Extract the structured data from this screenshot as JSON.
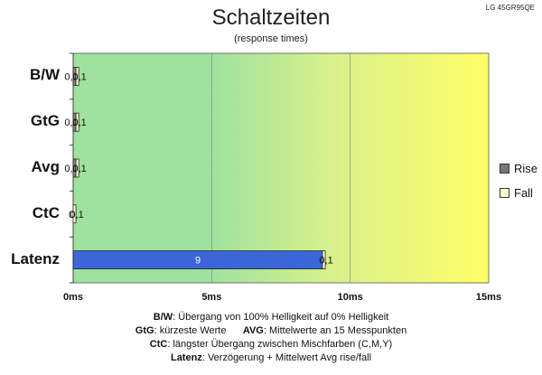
{
  "model": "LG 45GR95QE",
  "chart_data": {
    "type": "bar",
    "orientation": "horizontal",
    "stacked": true,
    "title": "Schaltzeiten",
    "subtitle": "(response times)",
    "categories": [
      "B/W",
      "GtG",
      "Avg",
      "CtC",
      "Latenz"
    ],
    "series": [
      {
        "name": "Rise",
        "values": [
          0.1,
          0.1,
          0.1,
          0,
          9
        ],
        "labels": [
          "0,1",
          "0,1",
          "0,1",
          "0",
          "9"
        ],
        "color": "#888888"
      },
      {
        "name": "Fall",
        "values": [
          0.1,
          0.1,
          0.1,
          0.1,
          0.1
        ],
        "labels": [
          "0,1",
          "0,1",
          "0,1",
          "0,1",
          "0,1"
        ],
        "color": "#ffffcc"
      }
    ],
    "latenz_bar_color": "#3a66d8",
    "x_ticks": [
      "0ms",
      "5ms",
      "10ms",
      "15ms"
    ],
    "xlim": [
      0,
      15
    ],
    "background_gradient": [
      "#9ee29e",
      "#d8f08c",
      "#ffff66"
    ],
    "gridlines": true,
    "legend_position": "right"
  },
  "notes": [
    {
      "key": "B/W",
      "text": "Übergang von 100% Helligkeit auf 0% Helligkeit"
    },
    {
      "key": "GtG",
      "text": "kürzeste  Werte"
    },
    {
      "key": "AVG",
      "text": "Mittelwerte an 15 Messpunkten"
    },
    {
      "key": "CtC",
      "text": "längster Übergang zwischen Mischfarben (C,M,Y)"
    },
    {
      "key": "Latenz",
      "text": "Verzögerung  + Mittelwert Avg rise/fall"
    }
  ]
}
